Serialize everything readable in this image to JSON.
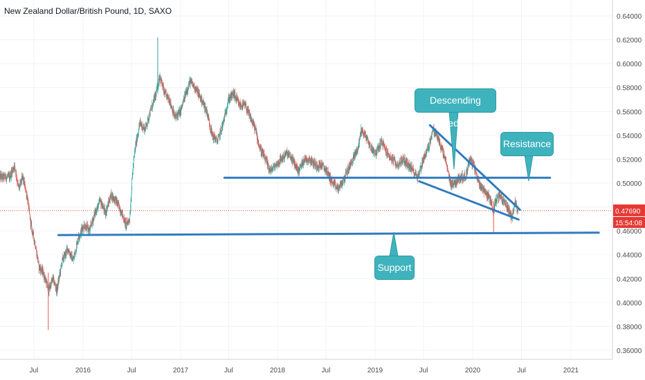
{
  "colors": {
    "up": "#26a69a",
    "down": "#ef5350",
    "drawing": "#2f7bbf",
    "callout": "#3fb3bd",
    "price_line": "#e53935",
    "grid": "#f0f3fa",
    "axis_text": "#4a4a4a"
  },
  "chart_data": {
    "type": "candlestick",
    "title": "New Zealand Dollar/British Pound, 1D, SAXO",
    "y_axis": {
      "ticks": [
        "0.64000",
        "0.62000",
        "0.60000",
        "0.58000",
        "0.56000",
        "0.54000",
        "0.52000",
        "0.50000",
        "0.48000",
        "0.46000",
        "0.44000",
        "0.42000",
        "0.40000",
        "0.38000",
        "0.36000"
      ],
      "range": [
        0.355,
        0.648
      ],
      "position": "right"
    },
    "x_axis": {
      "ticks": [
        "Jul",
        "2016",
        "Jul",
        "2017",
        "Jul",
        "2018",
        "Jul",
        "2019",
        "Jul",
        "2020",
        "Jul",
        "2021"
      ],
      "range": [
        "2015-04",
        "2021-07"
      ]
    },
    "grid": true,
    "last_price": {
      "label": "0.47690",
      "value": 0.4769,
      "countdown": "15:54:08"
    },
    "price_path": [
      [
        "2015-04-01",
        0.505
      ],
      [
        "2015-04-20",
        0.515
      ],
      [
        "2015-05-05",
        0.495
      ],
      [
        "2015-05-20",
        0.505
      ],
      [
        "2015-06-05",
        0.49
      ],
      [
        "2015-06-20",
        0.465
      ],
      [
        "2015-07-05",
        0.45
      ],
      [
        "2015-07-20",
        0.43
      ],
      [
        "2015-08-05",
        0.425
      ],
      [
        "2015-08-25",
        0.41
      ],
      [
        "2015-09-10",
        0.42
      ],
      [
        "2015-09-25",
        0.41
      ],
      [
        "2015-10-15",
        0.435
      ],
      [
        "2015-11-05",
        0.445
      ],
      [
        "2015-11-25",
        0.435
      ],
      [
        "2015-12-15",
        0.455
      ],
      [
        "2016-01-05",
        0.465
      ],
      [
        "2016-01-25",
        0.46
      ],
      [
        "2016-02-15",
        0.475
      ],
      [
        "2016-03-05",
        0.485
      ],
      [
        "2016-03-25",
        0.475
      ],
      [
        "2016-04-15",
        0.49
      ],
      [
        "2016-05-05",
        0.485
      ],
      [
        "2016-05-25",
        0.475
      ],
      [
        "2016-06-10",
        0.465
      ],
      [
        "2016-06-24",
        0.47
      ],
      [
        "2016-07-05",
        0.51
      ],
      [
        "2016-07-15",
        0.53
      ],
      [
        "2016-08-01",
        0.55
      ],
      [
        "2016-08-20",
        0.545
      ],
      [
        "2016-09-10",
        0.56
      ],
      [
        "2016-10-01",
        0.575
      ],
      [
        "2016-10-15",
        0.59
      ],
      [
        "2016-11-01",
        0.575
      ],
      [
        "2016-11-20",
        0.57
      ],
      [
        "2016-12-10",
        0.555
      ],
      [
        "2017-01-01",
        0.56
      ],
      [
        "2017-01-20",
        0.575
      ],
      [
        "2017-02-05",
        0.585
      ],
      [
        "2017-02-25",
        0.58
      ],
      [
        "2017-03-20",
        0.57
      ],
      [
        "2017-04-10",
        0.56
      ],
      [
        "2017-04-30",
        0.54
      ],
      [
        "2017-05-20",
        0.535
      ],
      [
        "2017-06-10",
        0.55
      ],
      [
        "2017-06-30",
        0.57
      ],
      [
        "2017-07-20",
        0.575
      ],
      [
        "2017-08-10",
        0.565
      ],
      [
        "2017-09-01",
        0.565
      ],
      [
        "2017-09-20",
        0.555
      ],
      [
        "2017-10-10",
        0.545
      ],
      [
        "2017-10-25",
        0.53
      ],
      [
        "2017-11-15",
        0.52
      ],
      [
        "2017-12-05",
        0.51
      ],
      [
        "2017-12-25",
        0.515
      ],
      [
        "2018-01-15",
        0.52
      ],
      [
        "2018-02-05",
        0.525
      ],
      [
        "2018-02-25",
        0.52
      ],
      [
        "2018-03-20",
        0.51
      ],
      [
        "2018-04-10",
        0.52
      ],
      [
        "2018-05-01",
        0.52
      ],
      [
        "2018-05-25",
        0.515
      ],
      [
        "2018-06-15",
        0.515
      ],
      [
        "2018-07-05",
        0.51
      ],
      [
        "2018-07-25",
        0.5
      ],
      [
        "2018-08-15",
        0.495
      ],
      [
        "2018-08-30",
        0.5
      ],
      [
        "2018-09-20",
        0.51
      ],
      [
        "2018-10-10",
        0.52
      ],
      [
        "2018-10-30",
        0.53
      ],
      [
        "2018-11-10",
        0.545
      ],
      [
        "2018-11-25",
        0.54
      ],
      [
        "2018-12-15",
        0.53
      ],
      [
        "2019-01-05",
        0.525
      ],
      [
        "2019-01-25",
        0.535
      ],
      [
        "2019-02-15",
        0.525
      ],
      [
        "2019-03-05",
        0.52
      ],
      [
        "2019-03-25",
        0.515
      ],
      [
        "2019-04-15",
        0.52
      ],
      [
        "2019-05-05",
        0.515
      ],
      [
        "2019-05-25",
        0.51
      ],
      [
        "2019-06-10",
        0.505
      ],
      [
        "2019-06-30",
        0.52
      ],
      [
        "2019-07-20",
        0.53
      ],
      [
        "2019-08-05",
        0.545
      ],
      [
        "2019-08-20",
        0.54
      ],
      [
        "2019-09-05",
        0.53
      ],
      [
        "2019-09-20",
        0.52
      ],
      [
        "2019-10-10",
        0.5
      ],
      [
        "2019-10-25",
        0.5
      ],
      [
        "2019-11-15",
        0.505
      ],
      [
        "2019-12-05",
        0.505
      ],
      [
        "2019-12-20",
        0.52
      ],
      [
        "2020-01-05",
        0.515
      ],
      [
        "2020-01-25",
        0.5
      ],
      [
        "2020-02-10",
        0.495
      ],
      [
        "2020-02-25",
        0.49
      ],
      [
        "2020-03-10",
        0.485
      ],
      [
        "2020-03-18",
        0.475
      ],
      [
        "2020-03-25",
        0.485
      ],
      [
        "2020-04-10",
        0.49
      ],
      [
        "2020-04-25",
        0.485
      ],
      [
        "2020-05-10",
        0.48
      ],
      [
        "2020-05-25",
        0.47
      ],
      [
        "2020-06-05",
        0.485
      ],
      [
        "2020-06-18",
        0.4769
      ]
    ],
    "extreme_wicks": [
      {
        "date": "2015-08-24",
        "low": 0.377,
        "high": 0.425
      },
      {
        "date": "2016-10-07",
        "low": 0.575,
        "high": 0.622
      },
      {
        "date": "2020-03-19",
        "low": 0.458,
        "high": 0.485
      }
    ],
    "drawings": [
      {
        "type": "horizontal",
        "name": "resistance-line",
        "y": 0.5045,
        "from": "2017-06-15",
        "to": "2020-10-15"
      },
      {
        "type": "trend",
        "name": "support-line",
        "points": [
          [
            "2015-10-01",
            0.4565
          ],
          [
            "2021-04-15",
            0.4585
          ]
        ]
      },
      {
        "type": "trend",
        "name": "wedge-upper-line",
        "points": [
          [
            "2019-07-25",
            0.5485
          ],
          [
            "2020-06-25",
            0.4777
          ]
        ]
      },
      {
        "type": "trend",
        "name": "wedge-lower-line",
        "points": [
          [
            "2019-06-15",
            0.5015
          ],
          [
            "2020-06-20",
            0.4695
          ]
        ]
      }
    ]
  },
  "annotations": [
    {
      "id": "descending-wedge",
      "label": "Descending wedge"
    },
    {
      "id": "resistance",
      "label": "Resistance"
    },
    {
      "id": "support",
      "label": "Support"
    }
  ]
}
